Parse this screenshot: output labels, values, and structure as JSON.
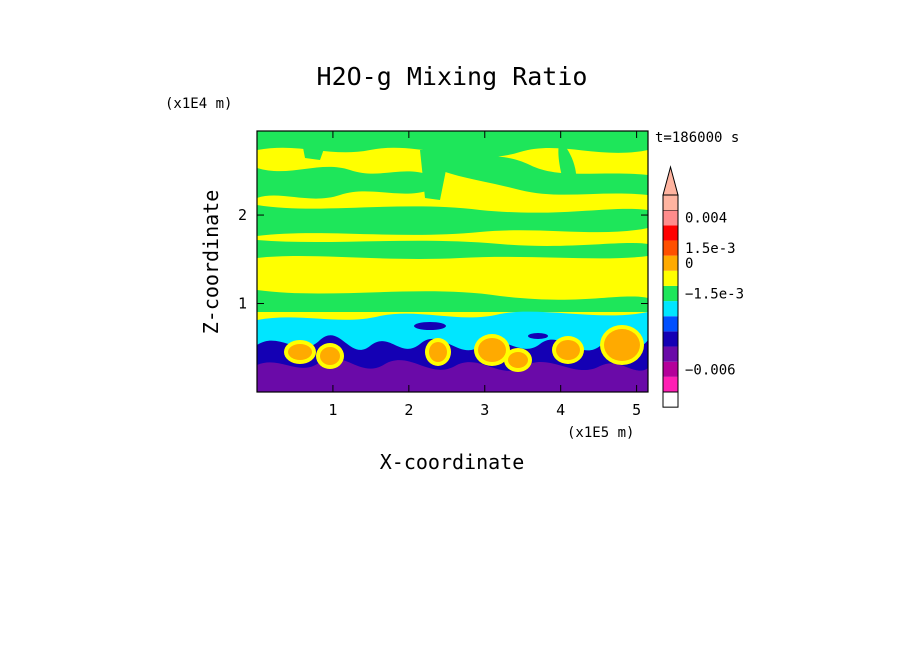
{
  "chart_data": {
    "type": "heatmap",
    "title": "H2O-g Mixing Ratio",
    "xlabel": "X-coordinate",
    "ylabel": "Z-coordinate",
    "x_unit": "(x1E5 m)",
    "y_unit": "(x1E4 m)",
    "time_label": "t=186000 s",
    "xlim": [
      0,
      5.15
    ],
    "ylim": [
      0,
      2.95
    ],
    "x_ticks": [
      {
        "value": 1,
        "label": "1"
      },
      {
        "value": 2,
        "label": "2"
      },
      {
        "value": 3,
        "label": "3"
      },
      {
        "value": 4,
        "label": "4"
      },
      {
        "value": 5,
        "label": "5"
      }
    ],
    "y_ticks": [
      {
        "value": 1,
        "label": "1"
      },
      {
        "value": 2,
        "label": "2"
      }
    ],
    "colorbar": {
      "levels": [
        {
          "color": "#ff1fb4"
        },
        {
          "color": "#b4009a"
        },
        {
          "color": "#6a0aa8"
        },
        {
          "color": "#1400b4"
        },
        {
          "color": "#0050ff"
        },
        {
          "color": "#00e6ff"
        },
        {
          "color": "#1ee65a"
        },
        {
          "color": "#ffff00"
        },
        {
          "color": "#ffaa00"
        },
        {
          "color": "#ff5000"
        },
        {
          "color": "#ff0000"
        },
        {
          "color": "#ff8c8c"
        },
        {
          "color": "#ffb4a0"
        }
      ],
      "labels": [
        {
          "text": "0.004",
          "level": 11.5
        },
        {
          "text": "1.5e-3",
          "level": 9.5
        },
        {
          "text": "0",
          "level": 8.5
        },
        {
          "text": "−1.5e-3",
          "level": 6.5
        },
        {
          "text": "−0.006",
          "level": 1.5
        }
      ]
    },
    "fields": {
      "upper_band_color": "#ffff00",
      "middle_band_color": "#1ee65a",
      "low_band_colors": [
        "#00e6ff",
        "#1400b4",
        "#6a0aa8"
      ],
      "blob_color": "#ffaa00"
    }
  }
}
